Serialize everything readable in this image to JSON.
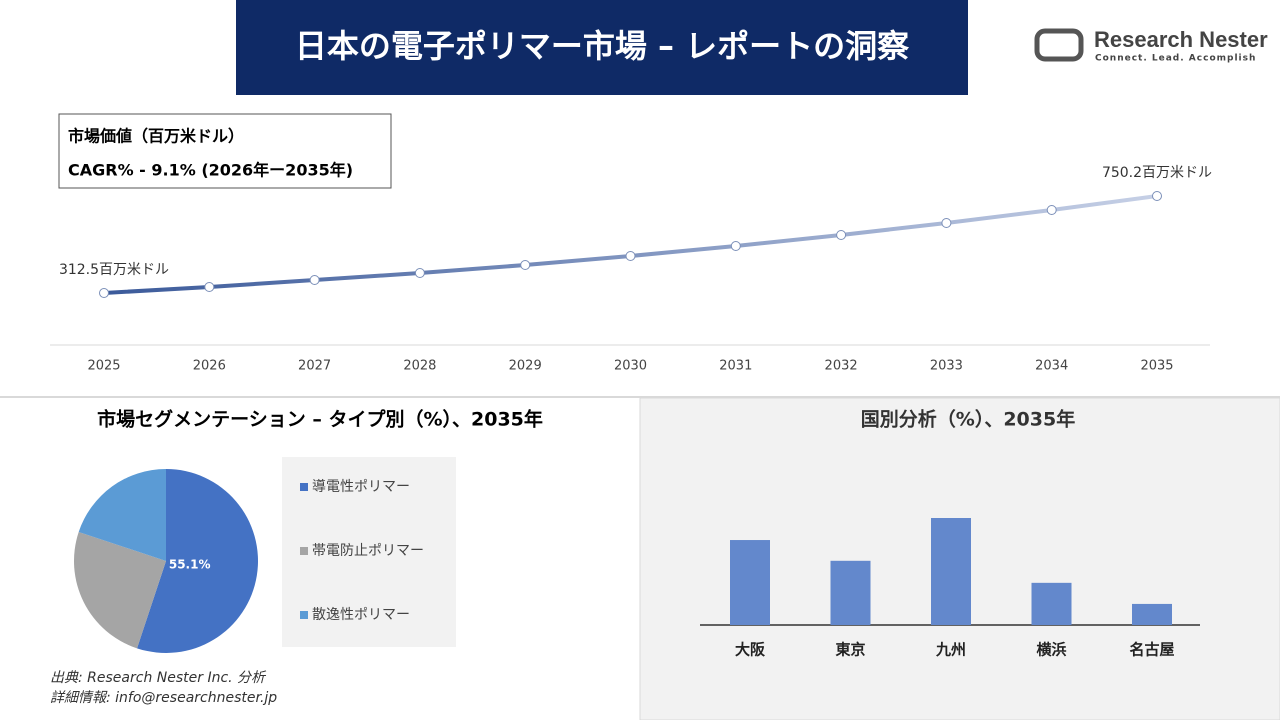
{
  "header": {
    "title": "日本の電子ポリマー市場 – レポートの洞察",
    "logo_name": "Research Nester",
    "logo_tagline": "Connect. Lead. Accomplish"
  },
  "chart_data": [
    {
      "type": "line",
      "annotations": [
        "市場価値（百万米ドル）",
        "CAGR% - 9.1% (2026年ー2035年)"
      ],
      "categories": [
        "2025",
        "2026",
        "2027",
        "2028",
        "2029",
        "2030",
        "2031",
        "2032",
        "2033",
        "2034",
        "2035"
      ],
      "values": [
        312.5,
        339.6,
        371.2,
        402.7,
        438.8,
        479.5,
        524.6,
        574.2,
        628.4,
        687.0,
        750.2
      ],
      "value_labels": [
        "312.5百万米ドル",
        null,
        null,
        null,
        null,
        null,
        null,
        null,
        null,
        null,
        "750.2百万米ドル"
      ],
      "color": "#3b5a9a"
    },
    {
      "type": "pie",
      "title": "市場セグメンテーション – タイプ別（%）、2035年",
      "categories": [
        "導電性ポリマー",
        "帯電防止ポリマー",
        "散逸性ポリマー"
      ],
      "values": [
        55.1,
        25.0,
        19.9
      ],
      "value_labels": [
        "55.1%",
        null,
        null
      ],
      "colors": [
        "#4472c4",
        "#a5a5a5",
        "#5b9bd5"
      ]
    },
    {
      "type": "bar",
      "title": "国別分析（%）、2035年",
      "categories": [
        "大阪",
        "東京",
        "九州",
        "横浜",
        "名古屋"
      ],
      "values": [
        26.6,
        20.1,
        33.5,
        13.2,
        6.6
      ],
      "color": "#6388cc"
    }
  ],
  "source": [
    "出典: Research Nester Inc. 分析",
    "詳細情報: info@researchnester.jp"
  ]
}
